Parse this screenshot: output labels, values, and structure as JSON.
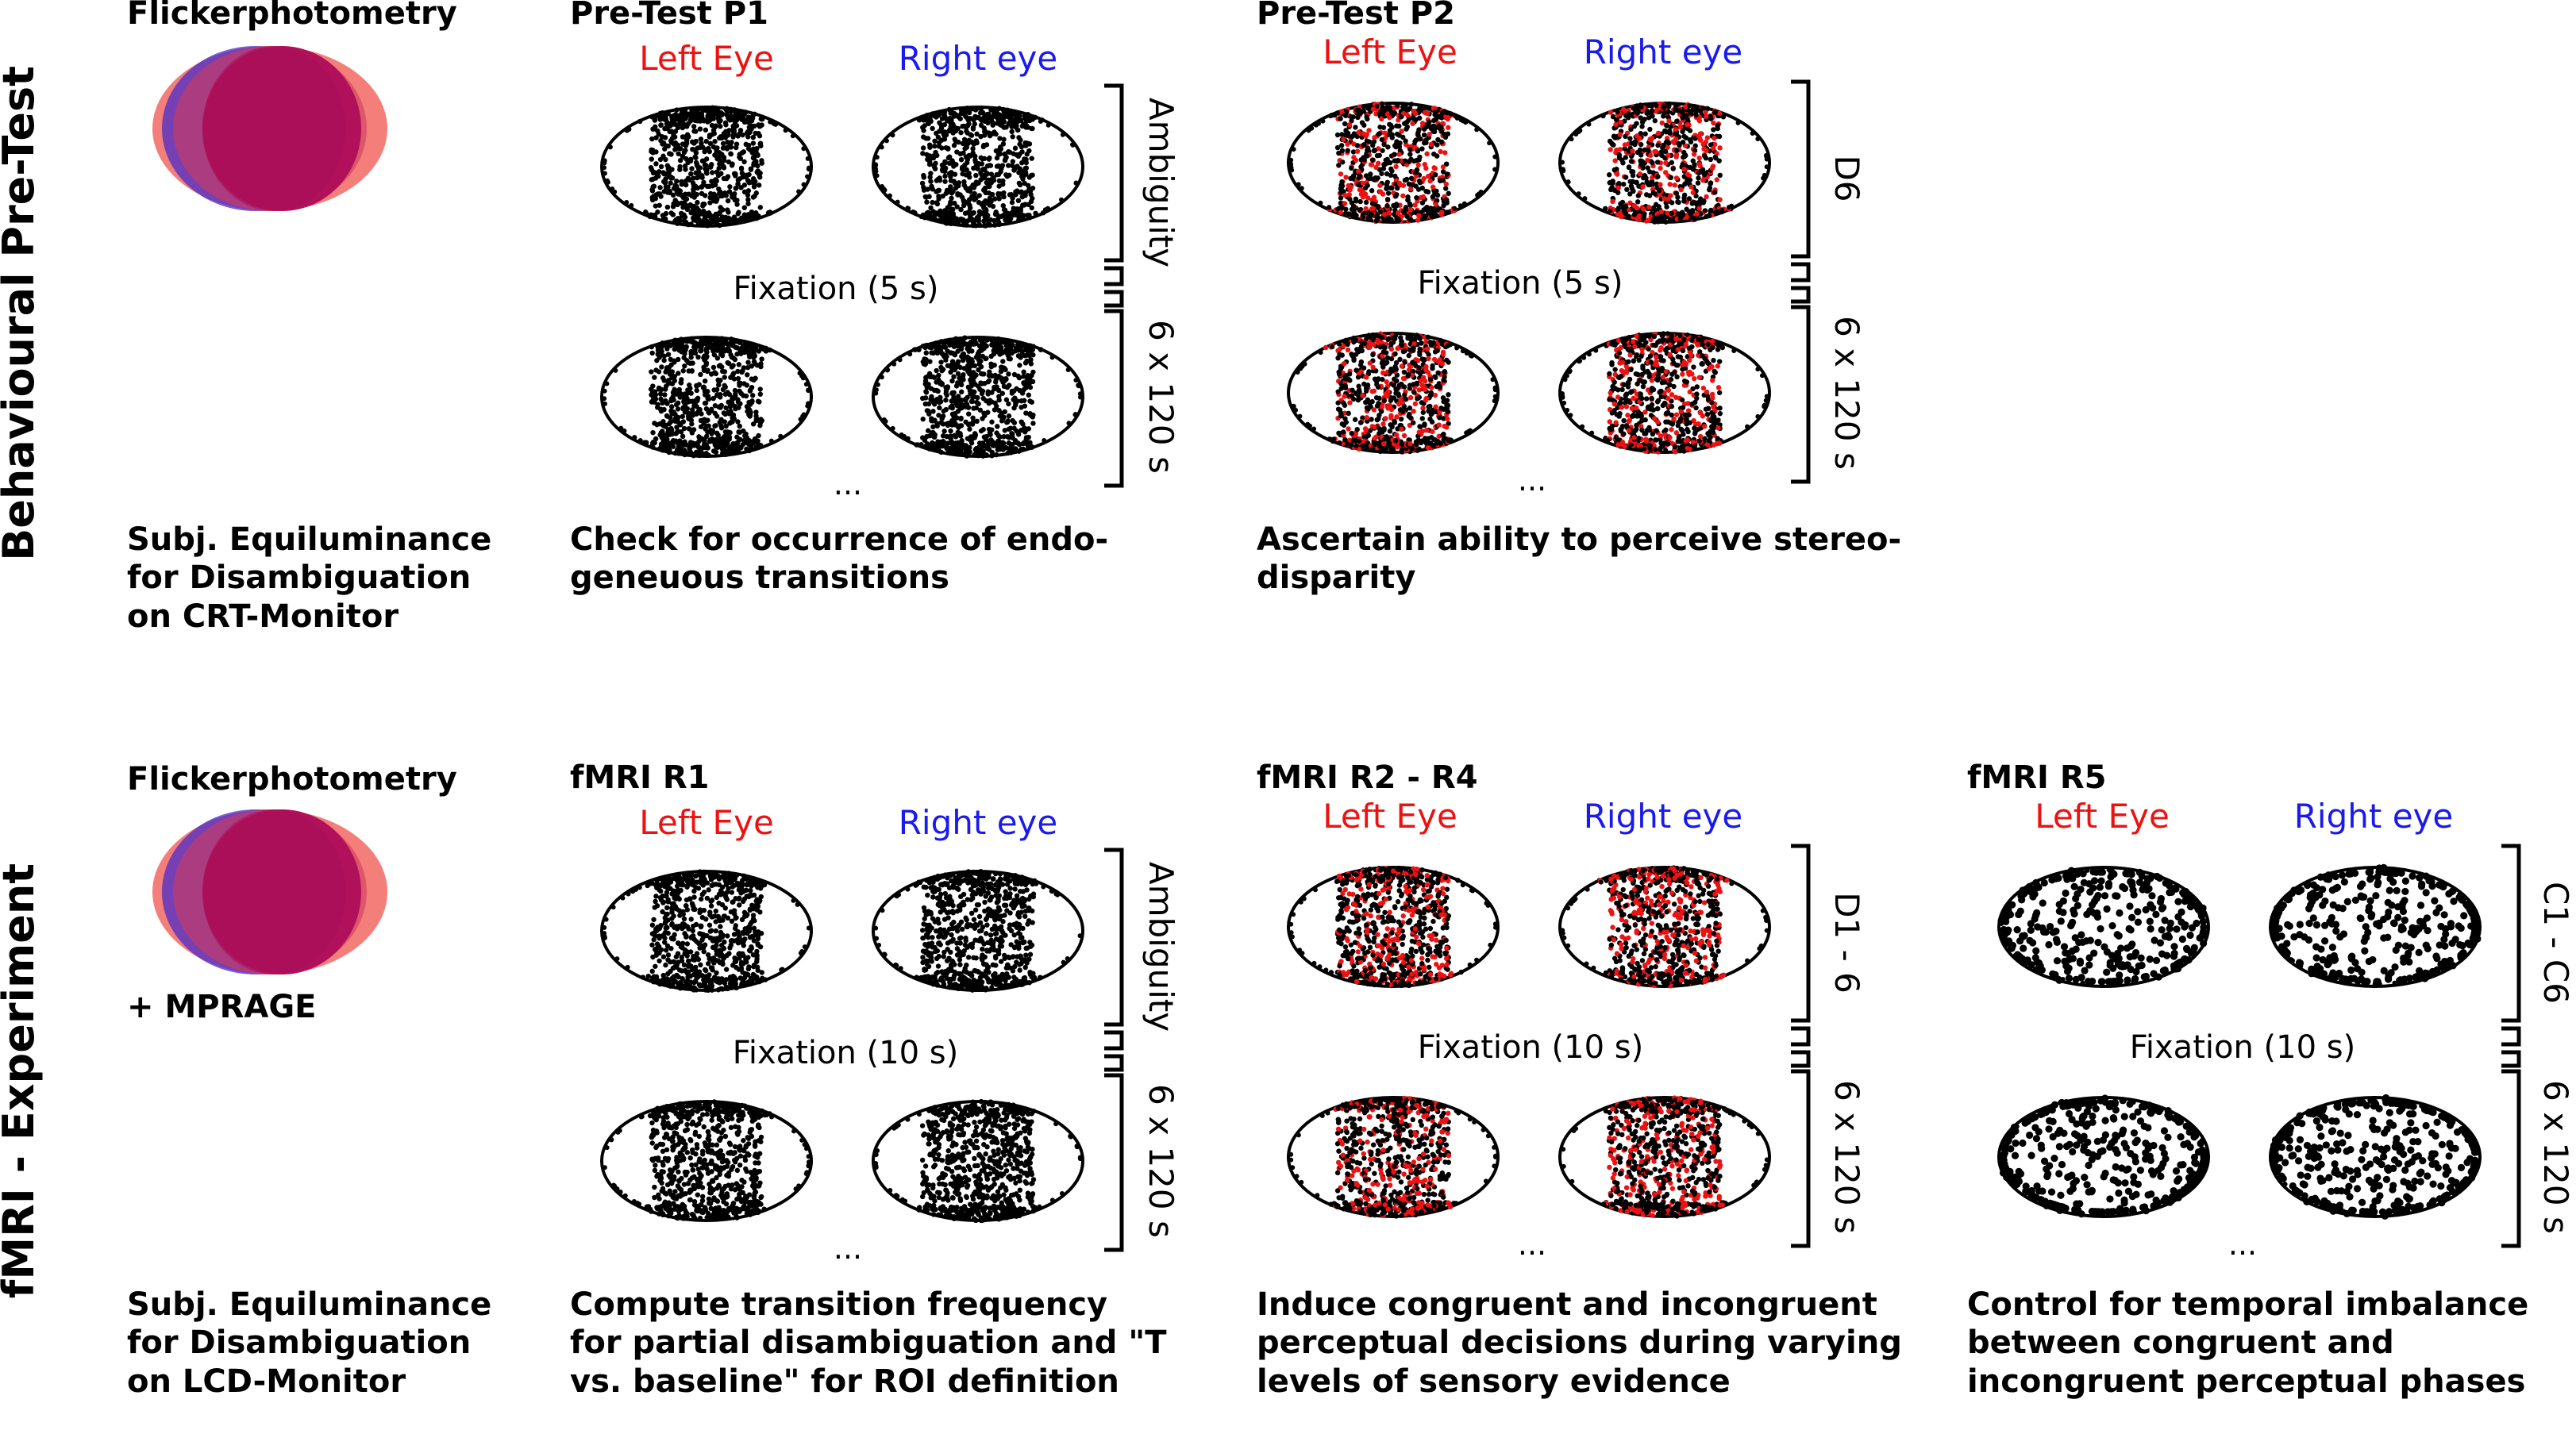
{
  "colors": {
    "left_eye": "#ee1111",
    "right_eye": "#1a1aee",
    "dots": "#000000",
    "flicker_outer": "#f47f7a",
    "flicker_blue": "#4b2bc8",
    "flicker_core": "#b0115a"
  },
  "rows": [
    {
      "section_label": "Behavioural Pre-Test",
      "flicker": {
        "title": "Flickerphotometry",
        "extra": "",
        "caption": [
          "Subj. Equiluminance",
          "for  Disambiguation",
          "on CRT-Monitor"
        ]
      },
      "panels": [
        {
          "title": "Pre-Test P1",
          "left_eye": "Left Eye",
          "right_eye": "Right eye",
          "condition": "Ambiguity",
          "fixation": "Fixation (5 s)",
          "repeat": "6 x 120 s",
          "ellipsis": "...",
          "caption": [
            "Check for occurrence of endo-",
            "geneuous transitions"
          ]
        },
        {
          "title": "Pre-Test P2",
          "left_eye": "Left Eye",
          "right_eye": "Right eye",
          "condition": "D6",
          "fixation": "Fixation (5 s)",
          "repeat": "6 x 120 s",
          "ellipsis": "...",
          "caption": [
            "Ascertain ability to perceive stereo-",
            "disparity"
          ]
        }
      ]
    },
    {
      "section_label": "fMRI - Experiment",
      "flicker": {
        "title": "Flickerphotometry",
        "extra": "+ MPRAGE",
        "caption": [
          "Subj. Equiluminance",
          "for  Disambiguation",
          "on LCD-Monitor"
        ]
      },
      "panels": [
        {
          "title": "fMRI R1",
          "left_eye": "Left Eye",
          "right_eye": "Right eye",
          "condition": "Ambiguity",
          "fixation": "Fixation (10 s)",
          "repeat": "6 x 120 s",
          "ellipsis": "...",
          "caption": [
            "Compute transition frequency",
            "for partial disambiguation and \"T",
            "vs. baseline\" for ROI definition"
          ]
        },
        {
          "title": "fMRI R2 - R4",
          "left_eye": "Left Eye",
          "right_eye": "Right eye",
          "condition": "D1 - 6",
          "fixation": "Fixation (10 s)",
          "repeat": "6 x 120 s",
          "ellipsis": "...",
          "caption": [
            "Induce congruent and incongruent",
            "perceptual decisions during varying",
            "levels of sensory evidence"
          ]
        },
        {
          "title": "fMRI R5",
          "left_eye": "Left Eye",
          "right_eye": "Right eye",
          "condition": "C1 - C6",
          "fixation": "Fixation (10 s)",
          "repeat": "6 x 120 s",
          "ellipsis": "...",
          "caption": [
            "Control for temporal imbalance",
            "between congruent and",
            "incongruent perceptual phases"
          ]
        }
      ]
    }
  ]
}
